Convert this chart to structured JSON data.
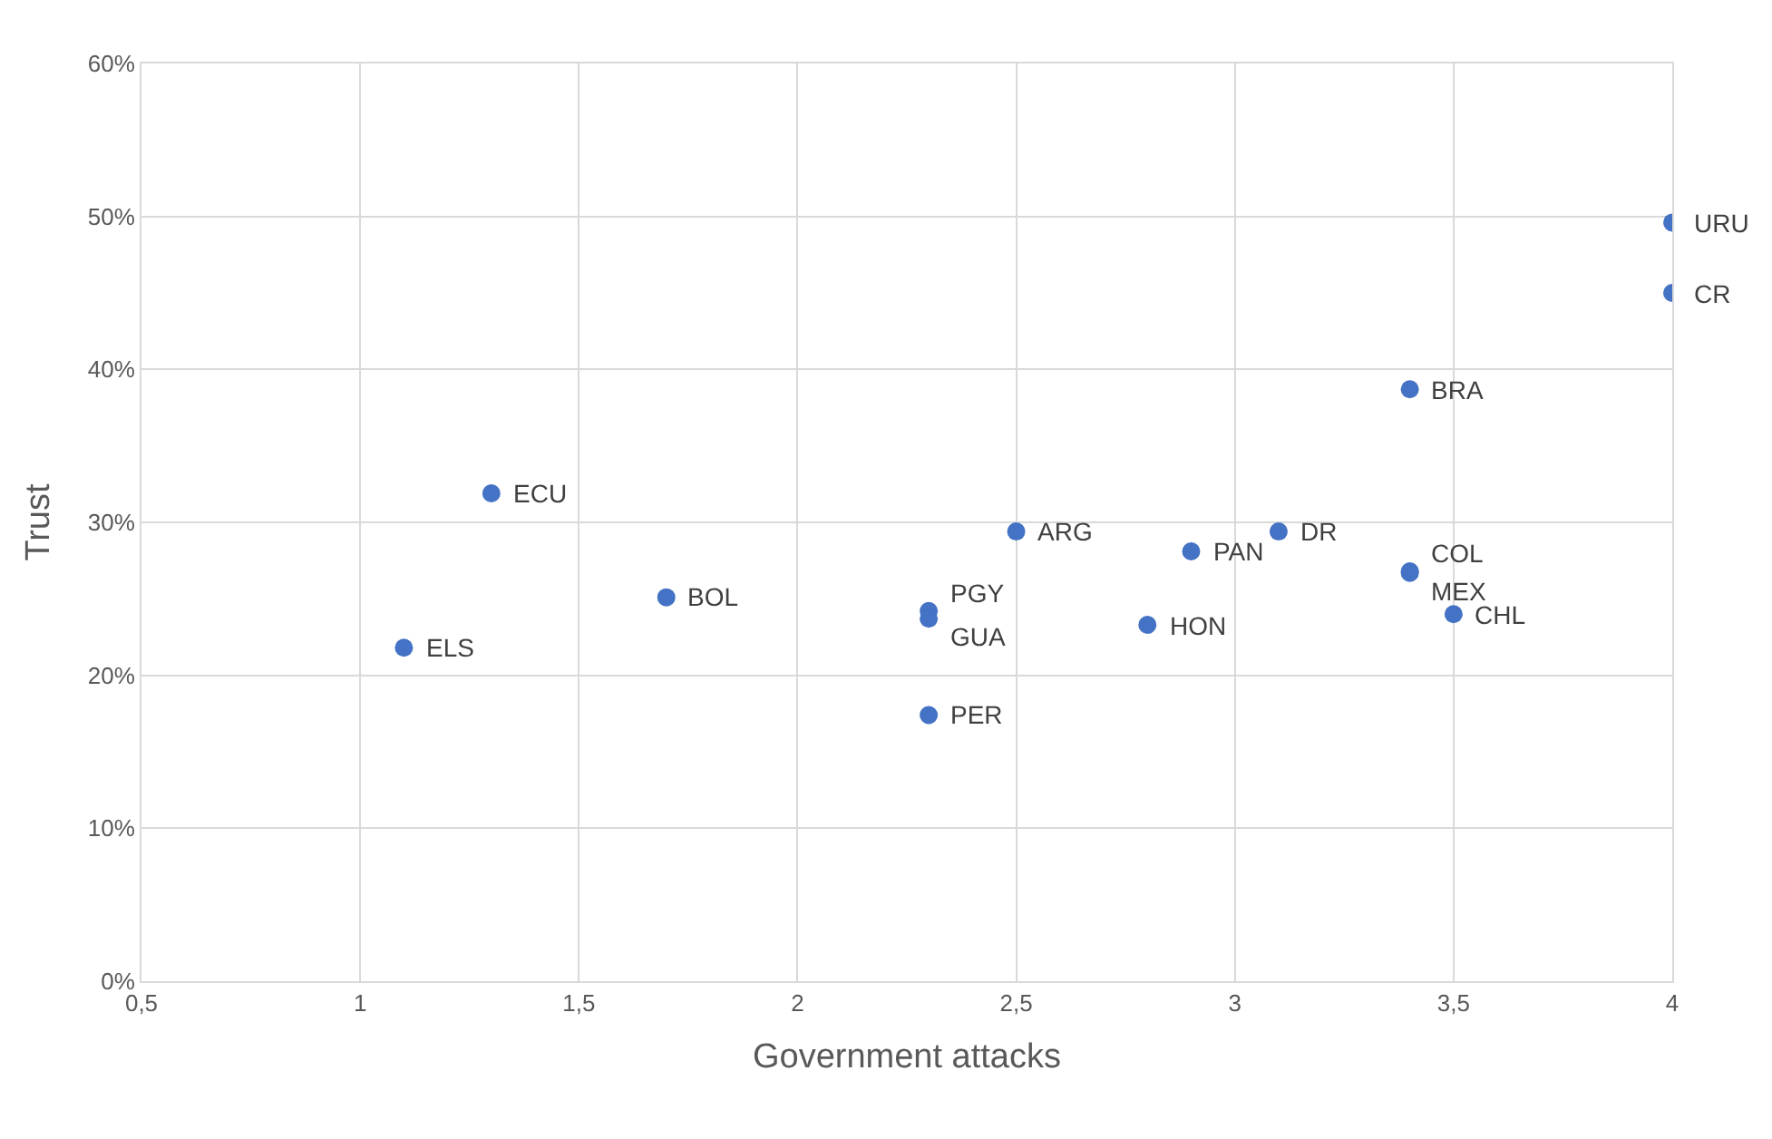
{
  "chart_data": {
    "type": "scatter",
    "xlabel": "Government attacks",
    "ylabel": "Trust",
    "series": [
      {
        "color": "#4472c4",
        "x": [
          4,
          4,
          3.4,
          1.3,
          2.5,
          3.1,
          2.9,
          3.4,
          3.4,
          3.5,
          1.7,
          2.3,
          2.3,
          2.8,
          1.1,
          2.3
        ],
        "values": [
          49.6,
          45.0,
          38.7,
          31.9,
          29.4,
          29.4,
          28.1,
          26.8,
          26.7,
          24.0,
          25.1,
          24.2,
          23.7,
          23.3,
          21.8,
          17.4
        ]
      }
    ],
    "annotations": [
      {
        "text": "URU",
        "x": 4,
        "y": 49.6
      },
      {
        "text": "CR",
        "x": 4,
        "y": 45.0
      },
      {
        "text": "BRA",
        "x": 3.4,
        "y": 38.7
      },
      {
        "text": "ECU",
        "x": 1.3,
        "y": 31.9
      },
      {
        "text": "ARG",
        "x": 2.5,
        "y": 29.4
      },
      {
        "text": "DR",
        "x": 3.1,
        "y": 29.4
      },
      {
        "text": "PAN",
        "x": 2.9,
        "y": 28.1
      },
      {
        "text": "COL",
        "x": 3.4,
        "y": 26.8
      },
      {
        "text": "MEX",
        "x": 3.4,
        "y": 26.7
      },
      {
        "text": "CHL",
        "x": 3.5,
        "y": 24.0
      },
      {
        "text": "BOL",
        "x": 1.7,
        "y": 25.1
      },
      {
        "text": "PGY",
        "x": 2.3,
        "y": 24.2
      },
      {
        "text": "GUA",
        "x": 2.3,
        "y": 23.7
      },
      {
        "text": "HON",
        "x": 2.8,
        "y": 23.3
      },
      {
        "text": "ELS",
        "x": 1.1,
        "y": 21.8
      },
      {
        "text": "PER",
        "x": 2.3,
        "y": 17.4
      }
    ],
    "xlim": [
      0.5,
      4
    ],
    "xticks": [
      {
        "value": 0.5,
        "label": "0,5"
      },
      1,
      {
        "value": 1.5,
        "label": "1,5"
      },
      2,
      {
        "value": 2.5,
        "label": "2,5"
      },
      3,
      {
        "value": 3.5,
        "label": "3,5"
      },
      4
    ],
    "ylim": [
      0,
      60
    ],
    "yticks": [
      {
        "value": 0,
        "label": "0%"
      },
      {
        "value": 10,
        "label": "10%"
      },
      {
        "value": 20,
        "label": "20%"
      },
      {
        "value": 30,
        "label": "30%"
      },
      {
        "value": 40,
        "label": "40%"
      },
      {
        "value": 50,
        "label": "50%"
      },
      {
        "value": 60,
        "label": "60%"
      }
    ],
    "grid": true,
    "marker": "circle",
    "legend": false
  }
}
